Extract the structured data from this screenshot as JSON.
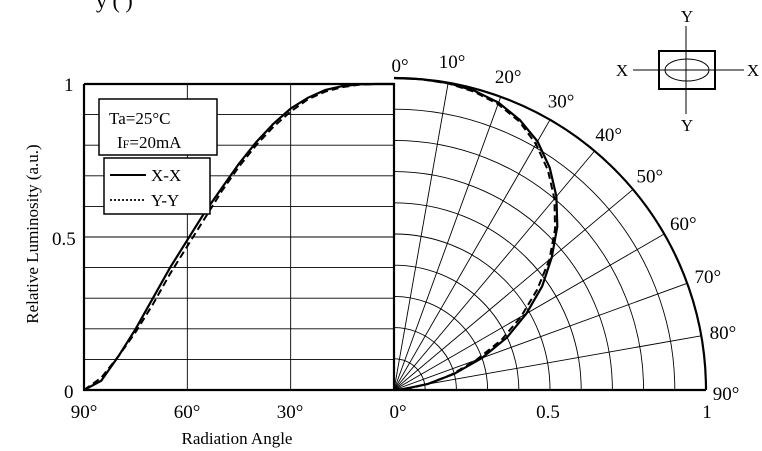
{
  "page": {
    "title_fragment": "y (        )"
  },
  "chart_data": {
    "type": "line",
    "subtype": "radiation-diagram",
    "xlabel": "Radiation Angle",
    "ylabel": "Relative Luminosity (a.u.)",
    "ylim": [
      0,
      1
    ],
    "xlim_deg": [
      90,
      0
    ],
    "y_ticks": [
      "0",
      "0.5",
      "1"
    ],
    "x_ticks": [
      "90°",
      "60°",
      "30°",
      "0°"
    ],
    "polar_radial_ticks": [
      "0°",
      "0.5",
      "1"
    ],
    "polar_angle_labels": [
      "0°",
      "10°",
      "20°",
      "30°",
      "40°",
      "50°",
      "60°",
      "70°",
      "80°",
      "90°"
    ],
    "conditions": {
      "temperature": "Ta=25°C",
      "current_prefix": "I",
      "current_sub": "F",
      "current_value": "=20mA"
    },
    "legend": {
      "placement": "top-left",
      "entries": [
        {
          "name": "X-X",
          "style": "solid"
        },
        {
          "name": "Y-Y",
          "style": "dotted"
        }
      ]
    },
    "orientation_diagram": {
      "top": "Y",
      "bottom": "Y",
      "left": "X",
      "right": "X"
    },
    "series": [
      {
        "name": "X-X",
        "style": "solid",
        "points": [
          {
            "angle": 90,
            "value": 0.0
          },
          {
            "angle": 85,
            "value": 0.03
          },
          {
            "angle": 80,
            "value": 0.11
          },
          {
            "angle": 75,
            "value": 0.2
          },
          {
            "angle": 70,
            "value": 0.3
          },
          {
            "angle": 65,
            "value": 0.4
          },
          {
            "angle": 60,
            "value": 0.49
          },
          {
            "angle": 55,
            "value": 0.58
          },
          {
            "angle": 50,
            "value": 0.66
          },
          {
            "angle": 45,
            "value": 0.74
          },
          {
            "angle": 40,
            "value": 0.81
          },
          {
            "angle": 35,
            "value": 0.87
          },
          {
            "angle": 30,
            "value": 0.92
          },
          {
            "angle": 25,
            "value": 0.955
          },
          {
            "angle": 20,
            "value": 0.98
          },
          {
            "angle": 15,
            "value": 0.993
          },
          {
            "angle": 10,
            "value": 0.999
          },
          {
            "angle": 5,
            "value": 1.0
          },
          {
            "angle": 0,
            "value": 1.0
          }
        ]
      },
      {
        "name": "Y-Y",
        "style": "dotted",
        "points": [
          {
            "angle": 90,
            "value": 0.0
          },
          {
            "angle": 85,
            "value": 0.04
          },
          {
            "angle": 80,
            "value": 0.11
          },
          {
            "angle": 75,
            "value": 0.19
          },
          {
            "angle": 70,
            "value": 0.28
          },
          {
            "angle": 65,
            "value": 0.38
          },
          {
            "angle": 60,
            "value": 0.47
          },
          {
            "angle": 55,
            "value": 0.56
          },
          {
            "angle": 50,
            "value": 0.65
          },
          {
            "angle": 45,
            "value": 0.73
          },
          {
            "angle": 40,
            "value": 0.8
          },
          {
            "angle": 35,
            "value": 0.86
          },
          {
            "angle": 30,
            "value": 0.91
          },
          {
            "angle": 25,
            "value": 0.95
          },
          {
            "angle": 20,
            "value": 0.975
          },
          {
            "angle": 15,
            "value": 0.99
          },
          {
            "angle": 10,
            "value": 0.998
          },
          {
            "angle": 5,
            "value": 1.0
          },
          {
            "angle": 0,
            "value": 1.0
          }
        ]
      }
    ]
  }
}
